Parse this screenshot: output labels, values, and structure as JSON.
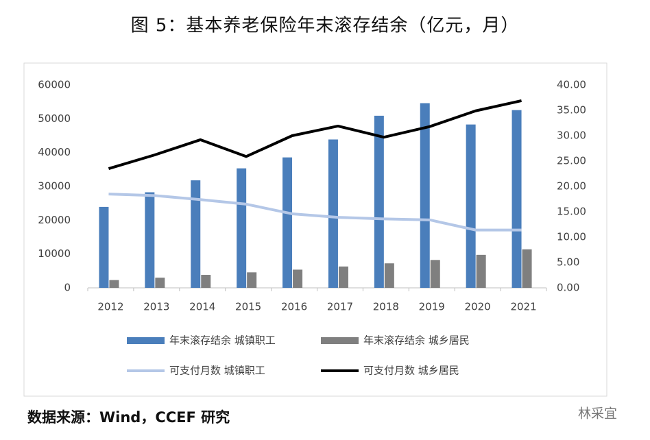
{
  "chart_data": {
    "type": "bar",
    "title": "图 5：基本养老保险年末滚存结余（亿元，月）",
    "categories": [
      "2012",
      "2013",
      "2014",
      "2015",
      "2016",
      "2017",
      "2018",
      "2019",
      "2020",
      "2021"
    ],
    "series": [
      {
        "name": "年末滚存结余 城镇职工",
        "color": "#4a7ebb",
        "type": "bar",
        "values": [
          23941,
          28269,
          31800,
          35345,
          38580,
          43885,
          50901,
          54623,
          48317,
          52574
        ]
      },
      {
        "name": "年末滚存结余 城乡居民",
        "color": "#7f7f7f",
        "type": "bar",
        "values": [
          2302,
          3006,
          3845,
          4592,
          5385,
          6318,
          7250,
          8249,
          9759,
          11396
        ]
      },
      {
        "name": "可支付月数 城镇职工",
        "color": "#b4c7e7",
        "type": "line",
        "axis": "y2",
        "values": [
          18.5,
          18.2,
          17.4,
          16.5,
          14.6,
          13.9,
          13.6,
          13.4,
          11.4,
          11.4
        ]
      },
      {
        "name": "可支付月数 城乡居民",
        "color": "#000000",
        "type": "line",
        "axis": "y2",
        "values": [
          23.5,
          26.2,
          29.2,
          25.9,
          30.0,
          31.9,
          29.7,
          31.8,
          34.9,
          36.9
        ]
      }
    ],
    "ylim": [
      0,
      60000
    ],
    "yticks": [
      0,
      10000,
      20000,
      30000,
      40000,
      50000,
      60000
    ],
    "y2lim": [
      0,
      40
    ],
    "y2ticks": [
      {
        "value": 0,
        "label": "0.00"
      },
      {
        "value": 5,
        "label": "5.00"
      },
      {
        "value": 10,
        "label": "10.00"
      },
      {
        "value": 15,
        "label": "15.00"
      },
      {
        "value": 20,
        "label": "20.00"
      },
      {
        "value": 25,
        "label": "25.00"
      },
      {
        "value": 30,
        "label": "30.00"
      },
      {
        "value": 35,
        "label": "35.00"
      },
      {
        "value": 40,
        "label": "40.00"
      }
    ],
    "grid": false
  },
  "source": "数据来源：Wind，CCEF 研究",
  "watermark": "林采宜"
}
